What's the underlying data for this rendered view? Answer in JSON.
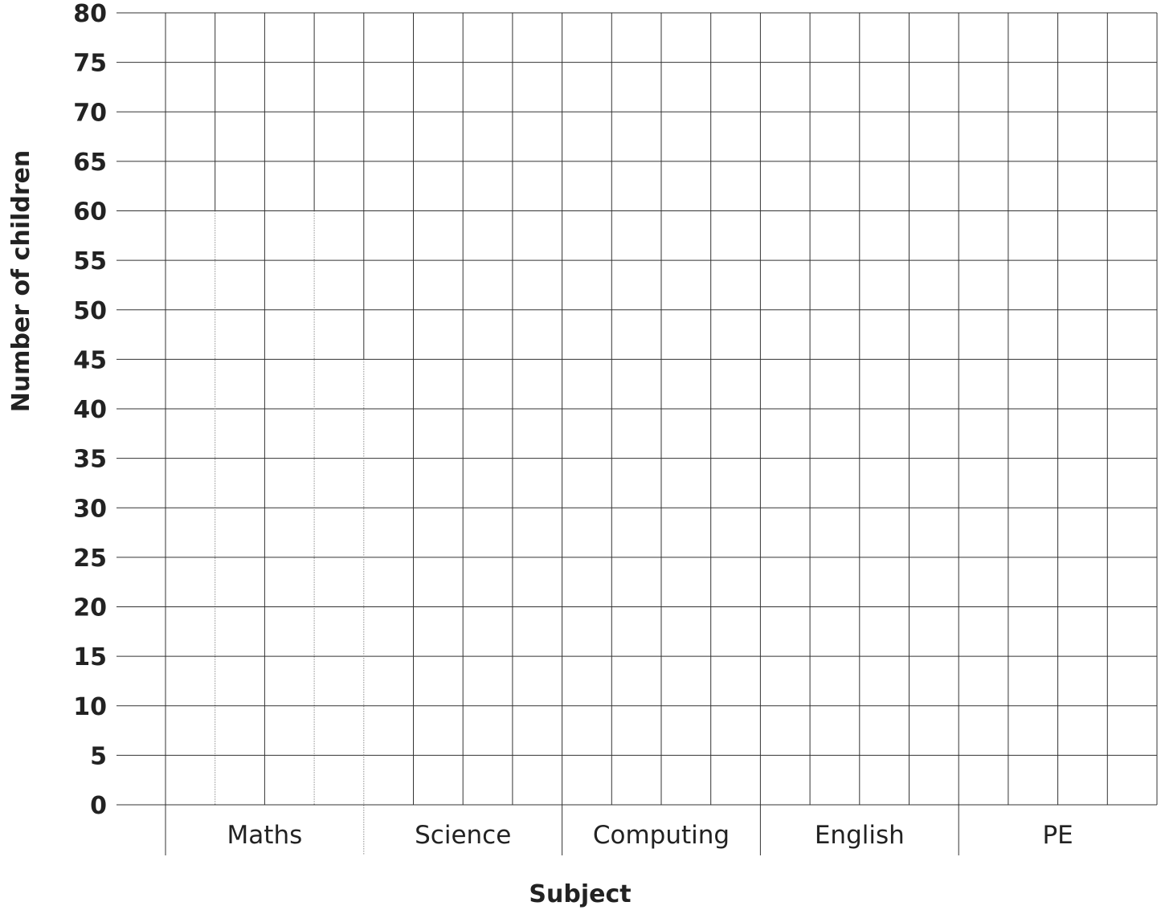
{
  "chart_data": {
    "type": "bar",
    "title": "",
    "xlabel": "Subject",
    "ylabel": "Number of children",
    "categories": [
      "Maths",
      "Science",
      "Computing",
      "English",
      "PE"
    ],
    "series": [],
    "ylim": [
      0,
      80
    ],
    "yticks": [
      0,
      5,
      10,
      15,
      20,
      25,
      30,
      35,
      40,
      45,
      50,
      55,
      60,
      65,
      70,
      75,
      80
    ],
    "subdivisions_per_category": 4,
    "grid": true,
    "legend": "none"
  },
  "colors": {
    "grid": "#333333",
    "text": "#222222",
    "background": "#ffffff"
  }
}
